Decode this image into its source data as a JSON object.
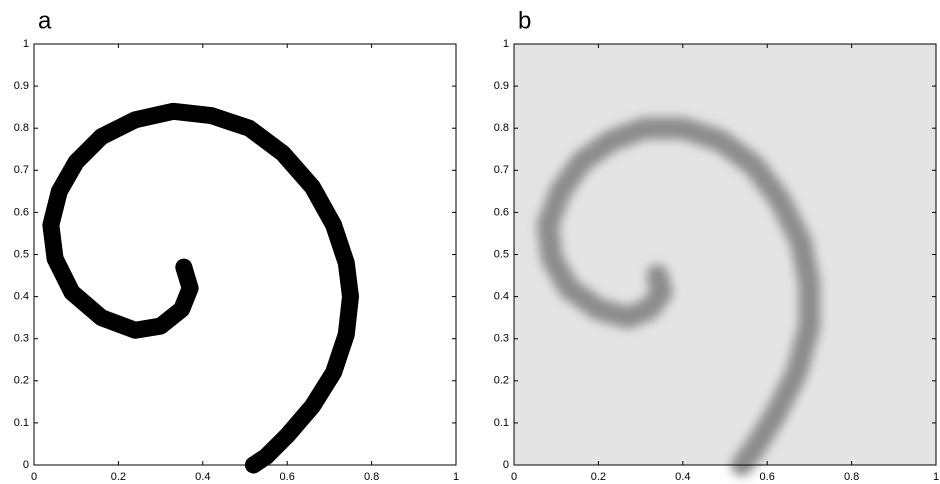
{
  "chart_data": [
    {
      "type": "line",
      "title": "a",
      "x": [
        0.355,
        0.37,
        0.35,
        0.3,
        0.24,
        0.16,
        0.09,
        0.05,
        0.04,
        0.06,
        0.1,
        0.16,
        0.24,
        0.33,
        0.42,
        0.51,
        0.59,
        0.66,
        0.71,
        0.74,
        0.75,
        0.74,
        0.71,
        0.66,
        0.6,
        0.55,
        0.52
      ],
      "series": [
        {
          "color": "#000000",
          "values": [
            0.47,
            0.42,
            0.37,
            0.33,
            0.32,
            0.35,
            0.41,
            0.49,
            0.57,
            0.65,
            0.72,
            0.78,
            0.82,
            0.84,
            0.83,
            0.8,
            0.74,
            0.66,
            0.57,
            0.48,
            0.4,
            0.31,
            0.22,
            0.14,
            0.07,
            0.02,
            0
          ]
        }
      ],
      "xlim": [
        0,
        1
      ],
      "xticks": [
        0,
        0.2,
        0.4,
        0.6,
        0.8,
        1
      ],
      "ylim": [
        0,
        1
      ],
      "yticks": [
        0,
        0.1,
        0.2,
        0.3,
        0.4,
        0.5,
        0.6,
        0.7,
        0.8,
        0.9,
        1
      ],
      "background": "#ffffff",
      "blur": false
    },
    {
      "type": "line",
      "title": "b",
      "x": [
        0.34,
        0.35,
        0.32,
        0.27,
        0.2,
        0.13,
        0.09,
        0.08,
        0.11,
        0.16,
        0.23,
        0.31,
        0.4,
        0.49,
        0.57,
        0.63,
        0.68,
        0.7,
        0.7,
        0.67,
        0.62,
        0.57,
        0.54
      ],
      "series": [
        {
          "color": "#8c8c8c",
          "values": [
            0.45,
            0.41,
            0.37,
            0.35,
            0.37,
            0.42,
            0.49,
            0.57,
            0.65,
            0.72,
            0.77,
            0.8,
            0.8,
            0.77,
            0.71,
            0.63,
            0.53,
            0.43,
            0.33,
            0.22,
            0.12,
            0.04,
            0
          ]
        }
      ],
      "xlim": [
        0,
        1
      ],
      "xticks": [
        0,
        0.2,
        0.4,
        0.6,
        0.8,
        1
      ],
      "ylim": [
        0,
        1
      ],
      "yticks": [
        0,
        0.1,
        0.2,
        0.3,
        0.4,
        0.5,
        0.6,
        0.7,
        0.8,
        0.9,
        1
      ],
      "background": "#e4e4e4",
      "blur": true
    }
  ]
}
